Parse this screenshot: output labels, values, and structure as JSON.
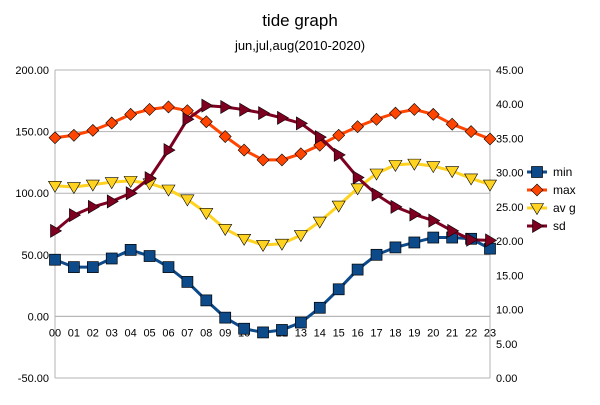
{
  "chart_data": {
    "type": "line",
    "title": "tide graph",
    "subtitle": "jun,jul,aug(2010-2020)",
    "x": [
      "00",
      "01",
      "02",
      "03",
      "04",
      "05",
      "06",
      "07",
      "08",
      "09",
      "10",
      "11",
      "12",
      "13",
      "14",
      "15",
      "16",
      "17",
      "18",
      "19",
      "20",
      "21",
      "22",
      "23"
    ],
    "y_left": {
      "min": -50,
      "max": 200,
      "ticks": [
        "200.00",
        "150.00",
        "100.00",
        "50.00",
        "0.00",
        "-50.00"
      ]
    },
    "y_right": {
      "min": 0,
      "max": 45,
      "ticks": [
        "45.00",
        "40.00",
        "35.00",
        "30.00",
        "25.00",
        "20.00",
        "15.00",
        "10.00",
        "5.00",
        "0.00"
      ]
    },
    "grid": "horizontal",
    "legend_position": "right",
    "series": [
      {
        "name": "min",
        "axis": "left",
        "color": "#0d4a8a",
        "marker": "square",
        "values": [
          46,
          40,
          40,
          47,
          54,
          49,
          40,
          28,
          13,
          -1,
          -10,
          -13,
          -11,
          -5,
          7,
          22,
          38,
          50,
          56,
          60,
          64,
          64,
          63,
          55
        ]
      },
      {
        "name": "max",
        "axis": "left",
        "color": "#ff4500",
        "marker": "diamond",
        "values": [
          145,
          147,
          151,
          157,
          164,
          168,
          170,
          167,
          158,
          146,
          135,
          127,
          127,
          132,
          139,
          147,
          154,
          160,
          165,
          168,
          164,
          156,
          150,
          144
        ]
      },
      {
        "name": "av g",
        "axis": "left",
        "color": "#ffd320",
        "marker": "triangle-down",
        "values": [
          106,
          105,
          107,
          109,
          110,
          108,
          103,
          95,
          84,
          71,
          63,
          58,
          59,
          66,
          77,
          90,
          104,
          116,
          123,
          124,
          122,
          118,
          112,
          107
        ]
      },
      {
        "name": "sd",
        "axis": "right",
        "color": "#7e0021",
        "marker": "triangle-right",
        "values": [
          21.5,
          23.8,
          25.0,
          25.8,
          27.0,
          29.2,
          33.3,
          37.8,
          39.8,
          39.6,
          39.2,
          38.7,
          38.0,
          37.2,
          35.2,
          32.6,
          29.3,
          26.8,
          25.0,
          23.9,
          23.0,
          21.5,
          20.2,
          20.1
        ]
      }
    ]
  }
}
